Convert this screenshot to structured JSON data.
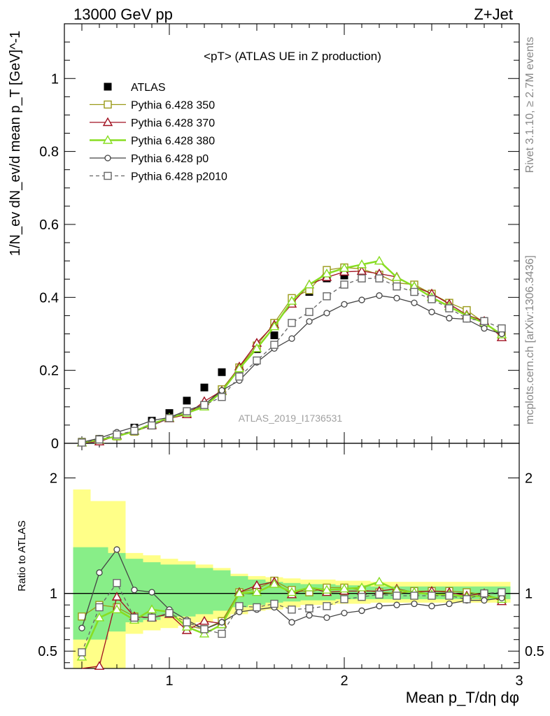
{
  "header": {
    "left_label": "13000 GeV pp",
    "right_label": "Z+Jet"
  },
  "side_labels": {
    "top": "Rivet 3.1.10, ≥ 2.7M events",
    "bottom": "mcplots.cern.ch [arXiv:1306.3436]"
  },
  "colors": {
    "data": "#000000",
    "p350": "#9a9a18",
    "p370": "#a01020",
    "p380": "#88dd22",
    "p0": "#444444",
    "p2010": "#666666",
    "band_inner": "#88ee88",
    "band_outer": "#ffff88"
  },
  "chart_data": [
    {
      "type": "line",
      "title": "<pT> (ATLAS UE in Z production)",
      "watermark": "ATLAS_2019_I1736531",
      "ylabel": "1/N_ev dN_ev/d mean p_T [GeV]^-1",
      "xlim": [
        0.4,
        3.0
      ],
      "ylim": [
        0,
        1.15
      ],
      "yticks": [
        0,
        0.2,
        0.4,
        0.6,
        0.8,
        1
      ],
      "ytick_labels": [
        "0",
        "0.2",
        "0.4",
        "0.6",
        "0.8",
        "1"
      ],
      "legend_position": "top-left",
      "x": [
        0.5,
        0.6,
        0.7,
        0.8,
        0.9,
        1.0,
        1.1,
        1.2,
        1.3,
        1.4,
        1.5,
        1.6,
        1.7,
        1.8,
        1.9,
        2.0,
        2.1,
        2.2,
        2.3,
        2.4,
        2.5,
        2.6,
        2.7,
        2.8,
        2.9
      ],
      "series": [
        {
          "name": "ATLAS",
          "key": "data",
          "marker": "square-filled",
          "values": [
            0.004,
            0.012,
            0.022,
            0.043,
            0.062,
            0.083,
            0.117,
            0.153,
            0.195,
            0.205,
            0.258,
            0.296,
            0.385,
            0.415,
            0.452,
            0.46,
            0.465,
            0.455,
            0.44,
            0.425,
            0.403,
            0.378,
            0.36,
            0.335,
            0.313
          ]
        },
        {
          "name": "Pythia 6.428 350",
          "key": "p350",
          "marker": "square-open",
          "dash": "",
          "values": [
            0.003,
            0.011,
            0.019,
            0.032,
            0.049,
            0.069,
            0.083,
            0.105,
            0.148,
            0.208,
            0.268,
            0.33,
            0.398,
            0.42,
            0.475,
            0.482,
            0.478,
            0.462,
            0.44,
            0.435,
            0.41,
            0.385,
            0.365,
            0.33,
            0.295
          ]
        },
        {
          "name": "Pythia 6.428 370",
          "key": "p370",
          "marker": "triangle-open",
          "dash": "",
          "values": [
            0.0013,
            0.0045,
            0.021,
            0.034,
            0.049,
            0.068,
            0.079,
            0.115,
            0.144,
            0.21,
            0.275,
            0.325,
            0.382,
            0.435,
            0.455,
            0.47,
            0.472,
            0.465,
            0.456,
            0.43,
            0.41,
            0.382,
            0.352,
            0.335,
            0.29
          ]
        },
        {
          "name": "Pythia 6.428 380",
          "key": "p380",
          "marker": "triangle-open",
          "dash": "",
          "width": 2.5,
          "values": [
            0.0018,
            0.0095,
            0.019,
            0.033,
            0.053,
            0.07,
            0.083,
            0.1,
            0.142,
            0.205,
            0.26,
            0.32,
            0.39,
            0.435,
            0.465,
            0.48,
            0.49,
            0.5,
            0.455,
            0.43,
            0.4,
            0.375,
            0.35,
            0.33,
            0.298
          ]
        },
        {
          "name": "Pythia 6.428 p0",
          "key": "p0",
          "marker": "circle-open",
          "dash": "",
          "values": [
            0.0028,
            0.0142,
            0.0304,
            0.0445,
            0.0625,
            0.071,
            0.09,
            0.106,
            0.145,
            0.172,
            0.222,
            0.26,
            0.287,
            0.334,
            0.357,
            0.381,
            0.393,
            0.405,
            0.398,
            0.385,
            0.36,
            0.343,
            0.34,
            0.315,
            0.3
          ]
        },
        {
          "name": "Pythia 6.428 p2010",
          "key": "p2010",
          "marker": "square-open",
          "dash": "5,4",
          "values": [
            0.002,
            0.0105,
            0.024,
            0.034,
            0.049,
            0.069,
            0.088,
            0.105,
            0.127,
            0.183,
            0.227,
            0.27,
            0.33,
            0.36,
            0.403,
            0.435,
            0.452,
            0.452,
            0.43,
            0.415,
            0.395,
            0.37,
            0.342,
            0.335,
            0.315
          ]
        }
      ]
    },
    {
      "type": "line",
      "ylabel": "Ratio to ATLAS",
      "xlabel": "Mean p_T/dη dφ",
      "xlim": [
        0.4,
        3.0
      ],
      "ylim": [
        0.35,
        2.3
      ],
      "xticks": [
        1,
        2,
        3
      ],
      "xtick_labels": [
        "1",
        "2",
        "3"
      ],
      "yticks": [
        0.5,
        1,
        2
      ],
      "ytick_labels": [
        "0.5",
        "1",
        "2"
      ],
      "x": [
        0.5,
        0.6,
        0.7,
        0.8,
        0.9,
        1.0,
        1.1,
        1.2,
        1.3,
        1.4,
        1.5,
        1.6,
        1.7,
        1.8,
        1.9,
        2.0,
        2.1,
        2.2,
        2.3,
        2.4,
        2.5,
        2.6,
        2.7,
        2.8,
        2.9
      ],
      "bands": {
        "inner": [
          [
            0.6,
            1.4
          ],
          [
            0.6,
            1.4
          ],
          [
            0.67,
            1.35
          ],
          [
            0.75,
            1.3
          ],
          [
            0.77,
            1.27
          ],
          [
            0.8,
            1.25
          ],
          [
            0.8,
            1.25
          ],
          [
            0.82,
            1.22
          ],
          [
            0.85,
            1.2
          ],
          [
            0.88,
            1.15
          ],
          [
            0.9,
            1.12
          ],
          [
            0.92,
            1.1
          ],
          [
            0.93,
            1.09
          ],
          [
            0.94,
            1.08
          ],
          [
            0.94,
            1.08
          ],
          [
            0.95,
            1.07
          ],
          [
            0.95,
            1.07
          ],
          [
            0.95,
            1.06
          ],
          [
            0.95,
            1.06
          ],
          [
            0.95,
            1.06
          ],
          [
            0.95,
            1.06
          ],
          [
            0.95,
            1.06
          ],
          [
            0.95,
            1.06
          ],
          [
            0.95,
            1.06
          ],
          [
            0.95,
            1.06
          ]
        ],
        "outer": [
          [
            0.3,
            1.9
          ],
          [
            0.3,
            1.8
          ],
          [
            0.35,
            1.8
          ],
          [
            0.65,
            1.35
          ],
          [
            0.68,
            1.33
          ],
          [
            0.7,
            1.3
          ],
          [
            0.72,
            1.28
          ],
          [
            0.75,
            1.25
          ],
          [
            0.78,
            1.22
          ],
          [
            0.82,
            1.17
          ],
          [
            0.85,
            1.15
          ],
          [
            0.86,
            1.14
          ],
          [
            0.88,
            1.13
          ],
          [
            0.9,
            1.12
          ],
          [
            0.9,
            1.12
          ],
          [
            0.91,
            1.11
          ],
          [
            0.91,
            1.11
          ],
          [
            0.92,
            1.1
          ],
          [
            0.92,
            1.1
          ],
          [
            0.92,
            1.1
          ],
          [
            0.92,
            1.1
          ],
          [
            0.92,
            1.1
          ],
          [
            0.92,
            1.1
          ],
          [
            0.92,
            1.1
          ],
          [
            0.92,
            1.1
          ]
        ]
      },
      "series": [
        {
          "name": "Pythia 6.428 350",
          "key": "p350",
          "marker": "square-open",
          "dash": "",
          "values": [
            0.8,
            0.9,
            0.88,
            0.8,
            0.79,
            0.83,
            0.72,
            0.69,
            0.76,
            1.01,
            1.04,
            1.11,
            1.03,
            1.01,
            1.05,
            1.05,
            1.03,
            1.01,
            1.0,
            1.02,
            1.02,
            1.02,
            1.01,
            0.99,
            0.95
          ]
        },
        {
          "name": "Pythia 6.428 370",
          "key": "p370",
          "marker": "triangle-open",
          "dash": "",
          "values": [
            0.33,
            0.37,
            0.97,
            0.8,
            0.79,
            0.82,
            0.68,
            0.76,
            0.74,
            1.01,
            1.07,
            1.1,
            0.99,
            1.05,
            1.01,
            1.02,
            1.02,
            1.02,
            1.04,
            1.01,
            1.02,
            1.01,
            0.98,
            1.0,
            0.93
          ]
        },
        {
          "name": "Pythia 6.428 380",
          "key": "p380",
          "marker": "triangle-open",
          "dash": "",
          "width": 2.5,
          "values": [
            0.45,
            0.79,
            0.86,
            0.77,
            0.86,
            0.84,
            0.71,
            0.65,
            0.73,
            1.0,
            1.01,
            1.08,
            1.01,
            1.05,
            1.03,
            1.04,
            1.05,
            1.1,
            1.03,
            1.01,
            0.99,
            0.99,
            0.97,
            0.98,
            0.95
          ]
        },
        {
          "name": "Pythia 6.428 p0",
          "key": "p0",
          "marker": "circle-open",
          "dash": "",
          "values": [
            0.7,
            1.18,
            1.38,
            1.03,
            1.01,
            0.86,
            0.77,
            0.69,
            0.75,
            0.84,
            0.86,
            0.88,
            0.75,
            0.81,
            0.79,
            0.83,
            0.85,
            0.89,
            0.9,
            0.91,
            0.89,
            0.91,
            0.94,
            0.94,
            0.96
          ]
        },
        {
          "name": "Pythia 6.428 p2010",
          "key": "p2010",
          "marker": "square-open",
          "dash": "5,4",
          "values": [
            0.49,
            0.88,
            1.09,
            0.79,
            0.79,
            0.83,
            0.75,
            0.69,
            0.65,
            0.89,
            0.88,
            0.91,
            0.86,
            0.87,
            0.89,
            0.95,
            0.97,
            0.99,
            0.98,
            0.98,
            0.98,
            0.98,
            0.95,
            1.0,
            1.01
          ]
        }
      ]
    }
  ]
}
